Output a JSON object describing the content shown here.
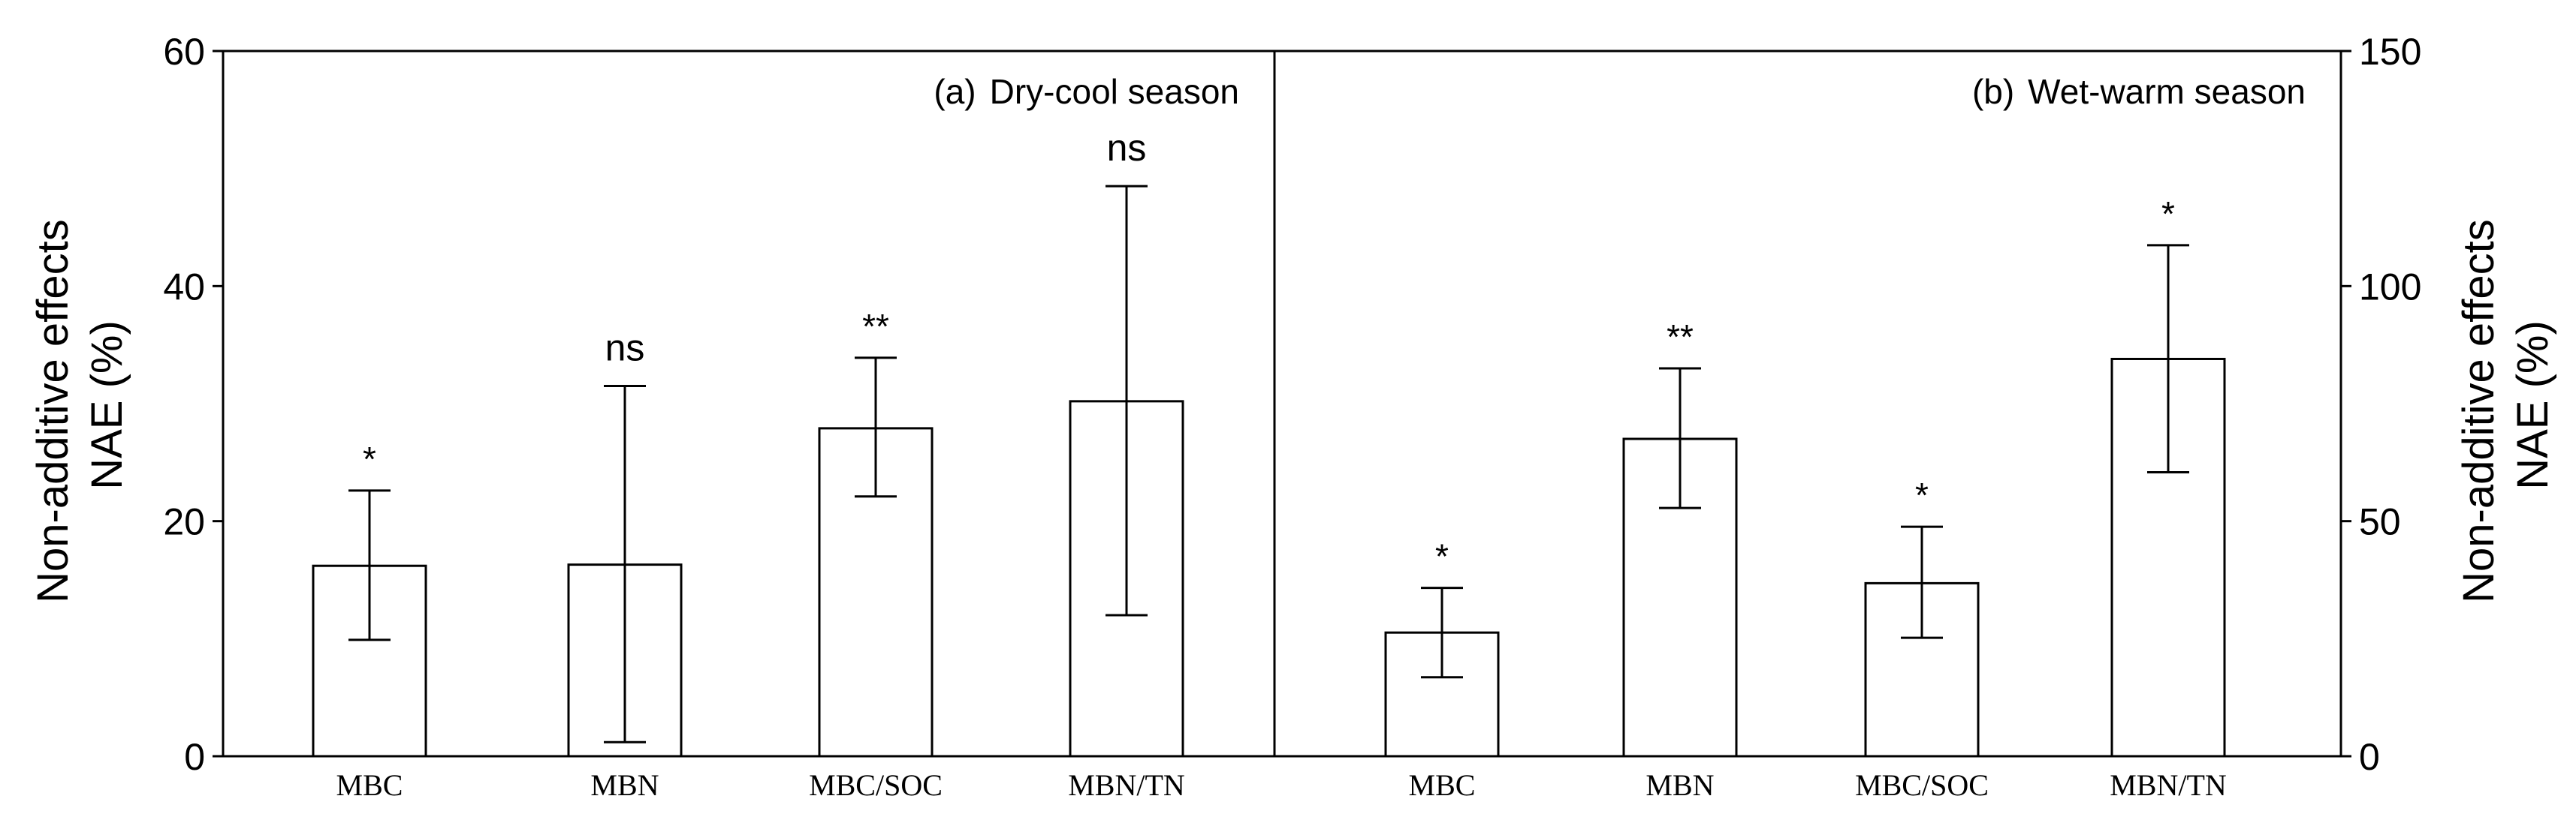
{
  "chart_data": [
    {
      "type": "bar",
      "panel_label": "(a)",
      "title": "Dry-cool season",
      "categories": [
        "MBC",
        "MBN",
        "MBC/SOC",
        "MBN/TN"
      ],
      "values": [
        16.2,
        16.3,
        27.9,
        30.2
      ],
      "error_low": [
        9.9,
        1.2,
        22.1,
        12.0
      ],
      "error_high": [
        22.6,
        31.5,
        33.9,
        48.5
      ],
      "significance": [
        "*",
        "ns",
        "**",
        "ns"
      ],
      "ylabel_line1": "Non-additive effects",
      "ylabel_line2": "NAE (%)",
      "ylim": [
        0,
        60
      ],
      "yticks": [
        0,
        20,
        40,
        60
      ],
      "ytick_labels": [
        "0",
        "20",
        "40",
        "60"
      ],
      "y_axis_side": "left"
    },
    {
      "type": "bar",
      "panel_label": "(b)",
      "title": "Wet-warm season",
      "categories": [
        "MBC",
        "MBN",
        "MBC/SOC",
        "MBN/TN"
      ],
      "values": [
        26.3,
        67.5,
        36.8,
        84.5
      ],
      "error_low": [
        16.8,
        52.8,
        25.2,
        60.4
      ],
      "error_high": [
        35.8,
        82.5,
        48.8,
        108.7
      ],
      "significance": [
        "*",
        "**",
        "*",
        "*"
      ],
      "ylabel_line1": "Non-additive effects",
      "ylabel_line2": "NAE (%)",
      "ylim": [
        0,
        150
      ],
      "yticks": [
        0,
        50,
        100,
        150
      ],
      "ytick_labels": [
        "0",
        "50",
        "100",
        "150"
      ],
      "y_axis_side": "right"
    }
  ]
}
